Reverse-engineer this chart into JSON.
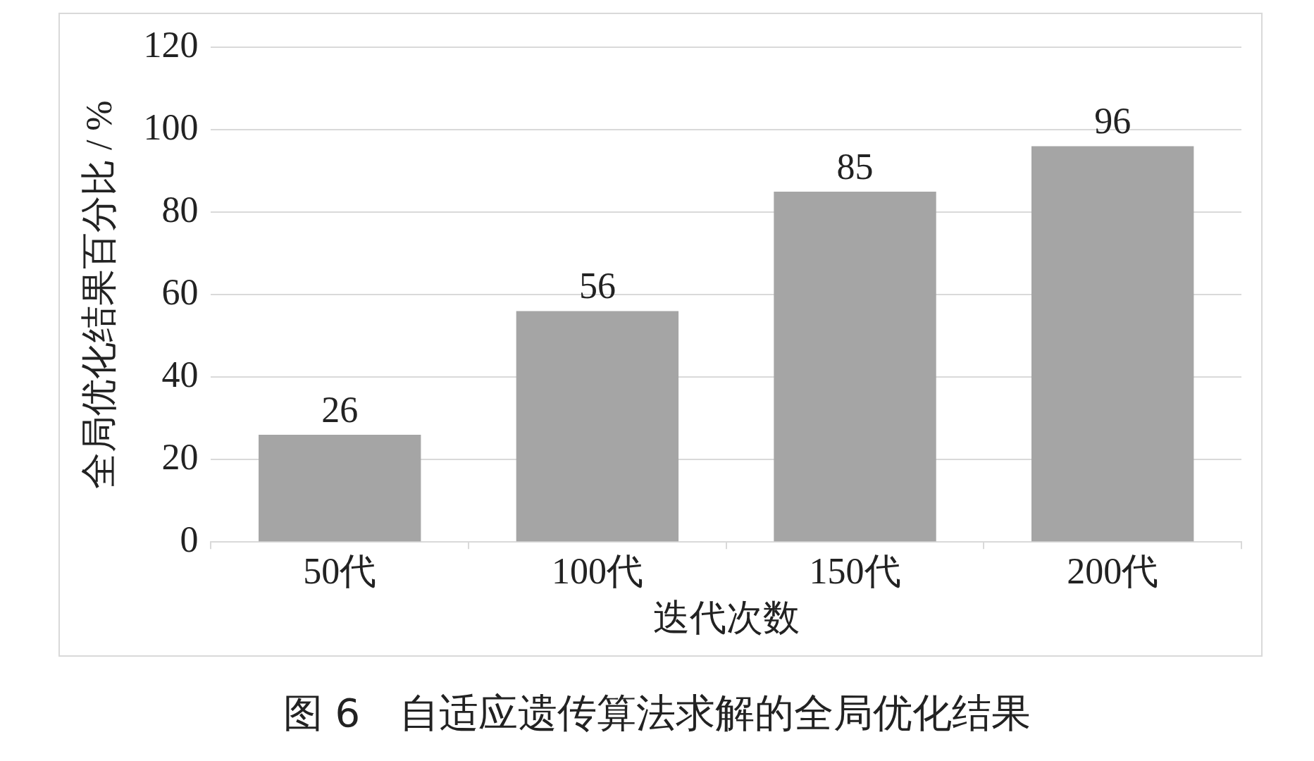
{
  "chart_data": {
    "type": "bar",
    "title": "图 6　自适应遗传算法求解的全局优化结果",
    "xlabel": "迭代次数",
    "ylabel": "全局优化结果百分比 / %",
    "categories": [
      "50代",
      "100代",
      "150代",
      "200代"
    ],
    "values": [
      26,
      56,
      85,
      96
    ],
    "color": "#a5a5a5",
    "ylim": [
      0,
      120
    ],
    "yticks": [
      0,
      20,
      40,
      60,
      80,
      100,
      120
    ],
    "grid": "y",
    "data_labels": true
  }
}
